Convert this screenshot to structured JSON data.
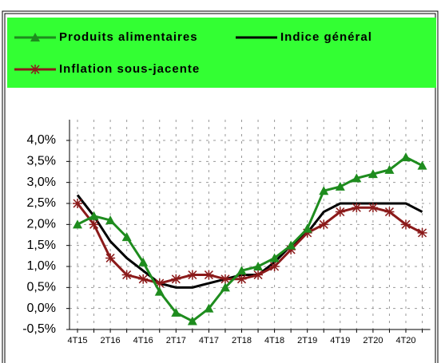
{
  "chart_data": {
    "type": "line",
    "categories": [
      "4T15",
      null,
      "2T16",
      null,
      "4T16",
      null,
      "2T17",
      null,
      "4T17",
      null,
      "2T18",
      null,
      "4T18",
      null,
      "2T19",
      null,
      "4T19",
      null,
      "2T20",
      null,
      "4T20",
      null
    ],
    "series": [
      {
        "name": "Produits alimentaires",
        "color": "#1e8c1e",
        "marker": "triangle",
        "values": [
          2.0,
          2.2,
          2.1,
          1.7,
          1.1,
          0.4,
          -0.1,
          -0.3,
          0.0,
          0.5,
          0.9,
          1.0,
          1.2,
          1.5,
          1.9,
          2.8,
          2.9,
          3.1,
          3.2,
          3.3,
          3.6,
          3.4
        ]
      },
      {
        "name": "Indice général",
        "color": "#000000",
        "marker": "none",
        "values": [
          2.7,
          2.2,
          1.6,
          1.2,
          0.9,
          0.6,
          0.5,
          0.5,
          0.6,
          0.7,
          0.8,
          0.8,
          1.1,
          1.5,
          1.8,
          2.3,
          2.5,
          2.5,
          2.5,
          2.5,
          2.5,
          2.3
        ]
      },
      {
        "name": "Inflation sous-jacente",
        "color": "#8b1a1a",
        "marker": "star",
        "values": [
          2.5,
          2.0,
          1.2,
          0.8,
          0.7,
          0.6,
          0.7,
          0.8,
          0.8,
          0.7,
          0.7,
          0.8,
          1.0,
          1.4,
          1.8,
          2.0,
          2.3,
          2.4,
          2.4,
          2.3,
          2.0,
          1.8
        ]
      }
    ],
    "ylim": [
      -0.5,
      4.0
    ],
    "yticks": [
      {
        "value": -0.5,
        "label": "-0,5%"
      },
      {
        "value": 0.0,
        "label": "0,0%"
      },
      {
        "value": 0.5,
        "label": "0,5%"
      },
      {
        "value": 1.0,
        "label": "1,0%"
      },
      {
        "value": 1.5,
        "label": "1,5%"
      },
      {
        "value": 2.0,
        "label": "2,0%"
      },
      {
        "value": 2.5,
        "label": "2,5%"
      },
      {
        "value": 3.0,
        "label": "3,0%"
      },
      {
        "value": 3.5,
        "label": "3,5%"
      },
      {
        "value": 4.0,
        "label": "4,0%"
      }
    ],
    "grid": true,
    "legend_background": "#33ff33"
  }
}
